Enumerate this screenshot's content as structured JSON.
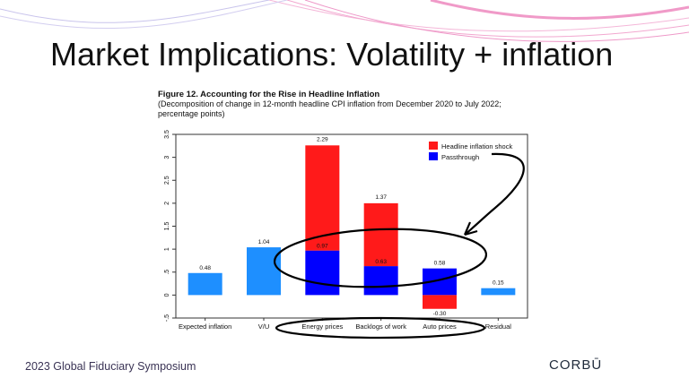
{
  "slide": {
    "title": "Market Implications: Volatility + inflation",
    "footer": "2023 Global Fiduciary Symposium",
    "logo": "CORBŪ"
  },
  "colors": {
    "headline": "#ff1a1a",
    "passthrough": "#0000ff",
    "single": "#1e8fff",
    "frame": "#333333",
    "annotation": "#000000"
  },
  "chart_data": {
    "type": "bar",
    "title": "Figure 12. Accounting for the Rise in Headline Inflation",
    "subtitle": "(Decomposition of change in 12-month headline CPI inflation from December 2020 to July 2022; percentage points)",
    "categories": [
      "Expected inflation",
      "V/U",
      "Energy prices",
      "Backlogs of work",
      "Auto prices",
      "Residual"
    ],
    "ylim": [
      -0.5,
      3.5
    ],
    "yticks": [
      -0.5,
      0,
      0.5,
      1,
      1.5,
      2,
      2.5,
      3,
      3.5
    ],
    "ytick_labels": [
      "-.5",
      "0",
      ".5",
      "1",
      "1.5",
      "2",
      "2.5",
      "3",
      "3.5"
    ],
    "grid": false,
    "legend": {
      "position": "top-right",
      "entries": [
        "Headline inflation shock",
        "Passthrough"
      ]
    },
    "stacked": [
      {
        "category": "Energy prices",
        "passthrough": 0.97,
        "headline": 2.29,
        "labels": [
          "0.97",
          "2.29"
        ]
      },
      {
        "category": "Backlogs of work",
        "passthrough": 0.63,
        "headline": 1.37,
        "labels": [
          "0.63",
          "1.37"
        ]
      },
      {
        "category": "Auto prices",
        "passthrough": 0.58,
        "headline": -0.3,
        "labels": [
          "0.58",
          "-0.30"
        ]
      }
    ],
    "single": [
      {
        "category": "Expected inflation",
        "value": 0.48,
        "label": "0.48"
      },
      {
        "category": "V/U",
        "value": 1.04,
        "label": "1.04"
      },
      {
        "category": "Residual",
        "value": 0.15,
        "label": "0.15"
      }
    ]
  }
}
